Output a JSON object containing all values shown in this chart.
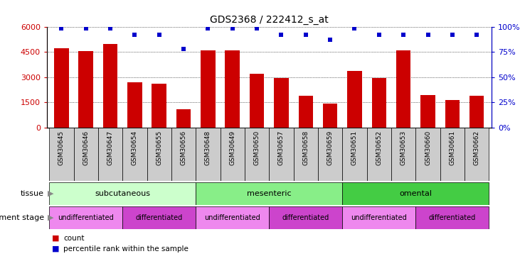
{
  "title": "GDS2368 / 222412_s_at",
  "samples": [
    "GSM30645",
    "GSM30646",
    "GSM30647",
    "GSM30654",
    "GSM30655",
    "GSM30656",
    "GSM30648",
    "GSM30649",
    "GSM30650",
    "GSM30657",
    "GSM30658",
    "GSM30659",
    "GSM30651",
    "GSM30652",
    "GSM30653",
    "GSM30660",
    "GSM30661",
    "GSM30662"
  ],
  "counts": [
    4700,
    4550,
    4950,
    2700,
    2600,
    1100,
    4600,
    4600,
    3200,
    2950,
    1900,
    1450,
    3350,
    2950,
    4600,
    1950,
    1650,
    1900
  ],
  "percentiles": [
    98,
    98,
    98,
    92,
    92,
    78,
    98,
    98,
    98,
    92,
    92,
    87,
    98,
    92,
    92,
    92,
    92,
    92
  ],
  "ylim_left": [
    0,
    6000
  ],
  "ylim_right": [
    0,
    100
  ],
  "yticks_left": [
    0,
    1500,
    3000,
    4500,
    6000
  ],
  "yticks_right": [
    0,
    25,
    50,
    75,
    100
  ],
  "bar_color": "#cc0000",
  "dot_color": "#0000cc",
  "tissue_groups": [
    {
      "label": "subcutaneous",
      "start": 0,
      "end": 6,
      "color": "#ccffcc"
    },
    {
      "label": "mesenteric",
      "start": 6,
      "end": 12,
      "color": "#88ee88"
    },
    {
      "label": "omental",
      "start": 12,
      "end": 18,
      "color": "#44cc44"
    }
  ],
  "dev_groups": [
    {
      "label": "undifferentiated",
      "start": 0,
      "end": 3,
      "color": "#ee88ee"
    },
    {
      "label": "differentiated",
      "start": 3,
      "end": 6,
      "color": "#cc44cc"
    },
    {
      "label": "undifferentiated",
      "start": 6,
      "end": 9,
      "color": "#ee88ee"
    },
    {
      "label": "differentiated",
      "start": 9,
      "end": 12,
      "color": "#cc44cc"
    },
    {
      "label": "undifferentiated",
      "start": 12,
      "end": 15,
      "color": "#ee88ee"
    },
    {
      "label": "differentiated",
      "start": 15,
      "end": 18,
      "color": "#cc44cc"
    }
  ],
  "tick_bg_color": "#cccccc",
  "tissue_label": "tissue",
  "dev_label": "development stage",
  "legend_count": "count",
  "legend_pct": "percentile rank within the sample",
  "background_color": "#ffffff"
}
